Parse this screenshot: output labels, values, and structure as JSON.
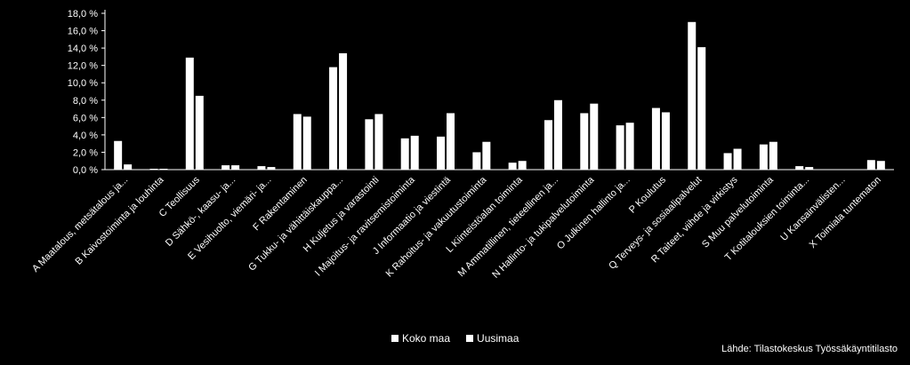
{
  "chart_data": {
    "type": "bar",
    "categories": [
      "A",
      "B",
      "C",
      "D",
      "E",
      "F",
      "G",
      "H",
      "I",
      "J",
      "K",
      "L",
      "M",
      "N",
      "O",
      "P",
      "Q",
      "R",
      "S",
      "T",
      "U",
      "X"
    ],
    "category_labels": [
      "Maatalous, metsätalous ja...",
      "Kaivostoiminta ja louhinta",
      "Teollisuus",
      "Sähkö-, kaasu- ja...",
      "Vesihuolto, viemäri- ja...",
      "Rakentaminen",
      "Tukku- ja vähittäiskauppa...",
      "Kuljetus ja varastointi",
      "Majoitus- ja ravitsemistoiminta",
      "Informaatio ja viestintä",
      "Rahoitus- ja vakuutustoiminta",
      "Kiinteistöalan toiminta",
      "Ammatillinen, tieteellinen ja...",
      "Hallinto- ja tukipalvelutoiminta",
      "Julkinen hallinto ja...",
      "Koulutus",
      "Terveys- ja sosiaalipalvelut",
      "Taiteet, viihde ja virkistys",
      "Muu palvelutoiminta",
      "Kotitalouksien toiminta...",
      "Kansainvälisten...",
      "Toimiala tuntematon"
    ],
    "series": [
      {
        "name": "Koko maa",
        "values": [
          3.3,
          0.1,
          12.9,
          0.5,
          0.4,
          6.4,
          11.8,
          5.8,
          3.6,
          3.8,
          2.0,
          0.8,
          5.7,
          6.5,
          5.1,
          7.1,
          17.0,
          1.9,
          2.9,
          0.4,
          0.0,
          1.1
        ]
      },
      {
        "name": "Uusimaa",
        "values": [
          0.6,
          0.1,
          8.5,
          0.5,
          0.3,
          6.1,
          13.4,
          6.4,
          3.9,
          6.5,
          3.2,
          1.0,
          8.0,
          7.6,
          5.4,
          6.6,
          14.1,
          2.4,
          3.2,
          0.3,
          0.0,
          1.0
        ]
      }
    ],
    "y_ticks": [
      "0,0 %",
      "2,0 %",
      "4,0 %",
      "6,0 %",
      "8,0 %",
      "10,0 %",
      "12,0 %",
      "14,0 %",
      "16,0 %",
      "18,0 %"
    ],
    "ylim": [
      0,
      18
    ],
    "title": "",
    "xlabel": "",
    "ylabel": "",
    "grid": false,
    "legend_position": "bottom",
    "colors": {
      "background": "#000000",
      "bars": "#ffffff",
      "text": "#ffffff"
    }
  },
  "legend": {
    "koko_maa": "Koko maa",
    "uusimaa": "Uusimaa"
  },
  "source": "Lähde: Tilastokeskus Työssäkäyntitilasto"
}
